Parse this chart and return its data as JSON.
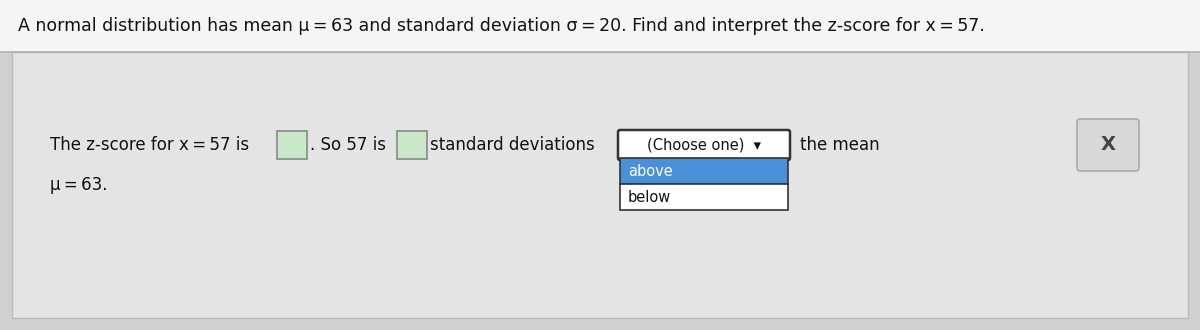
{
  "title": "A normal distribution has mean μ = 63 and standard deviation σ = 20. Find and interpret the z-score for x = 57.",
  "title_fontsize": 12.5,
  "title_color": "#111111",
  "bg_outer": "#d0d0d0",
  "top_bg": "#f5f5f5",
  "body_bg": "#e4e4e4",
  "line1": "The z-score for x = 57 is",
  "dot_so": ". So 57 is",
  "std_dev": "standard deviations",
  "the_mean": "the mean",
  "mu_line": "μ = 63.",
  "dropdown_label": "(Choose one)  ▾",
  "opt_above": "above",
  "opt_below": "below",
  "input_box_fill": "#c8e8c8",
  "input_box_edge": "#888888",
  "dropdown_header_fill": "#ffffff",
  "dropdown_header_edge": "#333333",
  "dropdown_above_fill": "#4a90d9",
  "dropdown_below_fill": "#ffffff",
  "dropdown_border": "#333333",
  "close_fill": "#d8d8d8",
  "close_edge": "#aaaaaa",
  "text_color": "#111111",
  "text_fs": 12.0,
  "title_fs": 12.5
}
